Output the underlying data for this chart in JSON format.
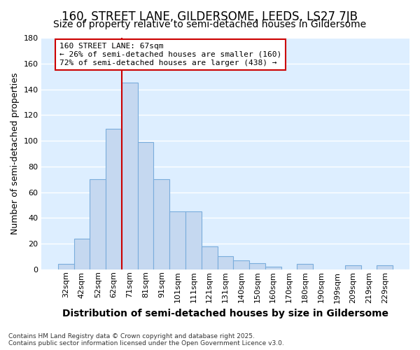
{
  "title": "160, STREET LANE, GILDERSOME, LEEDS, LS27 7JB",
  "subtitle": "Size of property relative to semi-detached houses in Gildersome",
  "xlabel": "Distribution of semi-detached houses by size in Gildersome",
  "ylabel": "Number of semi-detached properties",
  "categories": [
    "32sqm",
    "42sqm",
    "52sqm",
    "62sqm",
    "71sqm",
    "81sqm",
    "91sqm",
    "101sqm",
    "111sqm",
    "121sqm",
    "131sqm",
    "140sqm",
    "150sqm",
    "160sqm",
    "170sqm",
    "180sqm",
    "190sqm",
    "199sqm",
    "209sqm",
    "219sqm",
    "229sqm"
  ],
  "bar_heights": [
    4,
    24,
    70,
    109,
    145,
    99,
    70,
    45,
    45,
    18,
    10,
    7,
    5,
    2,
    0,
    4,
    0,
    0,
    3,
    0,
    3
  ],
  "bar_color": "#c5d8f0",
  "bar_edge_color": "#7aaddc",
  "red_line_index": 3.5,
  "annotation_text": "160 STREET LANE: 67sqm\n← 26% of semi-detached houses are smaller (160)\n72% of semi-detached houses are larger (438) →",
  "background_color": "#ddeeff",
  "plot_bg_color": "#ddeeff",
  "grid_color": "#ffffff",
  "ylim": [
    0,
    180
  ],
  "yticks": [
    0,
    20,
    40,
    60,
    80,
    100,
    120,
    140,
    160,
    180
  ],
  "footer": "Contains HM Land Registry data © Crown copyright and database right 2025.\nContains public sector information licensed under the Open Government Licence v3.0.",
  "title_fontsize": 12,
  "subtitle_fontsize": 10,
  "xlabel_fontsize": 10,
  "ylabel_fontsize": 9,
  "tick_fontsize": 8,
  "annot_fontsize": 8
}
